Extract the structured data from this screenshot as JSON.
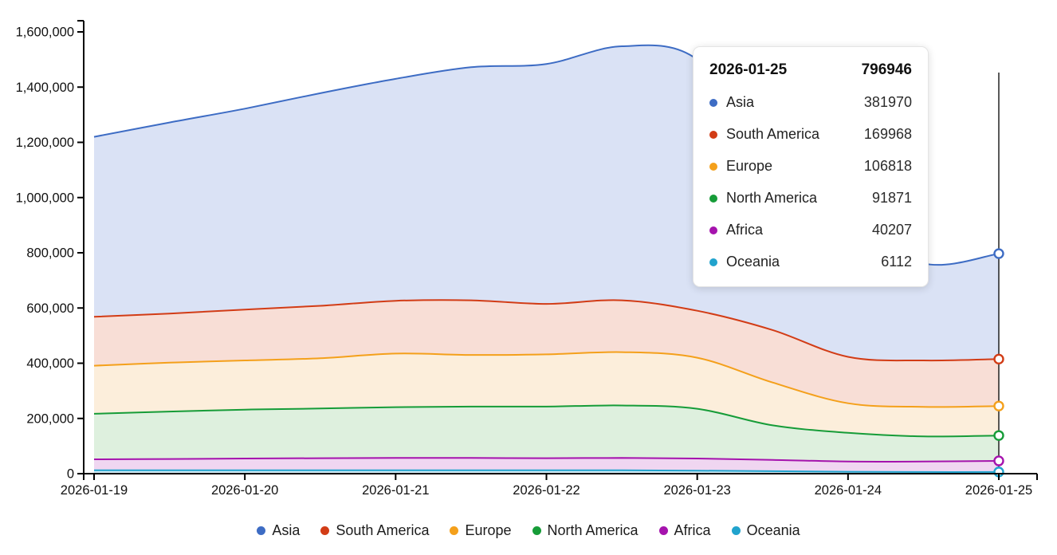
{
  "chart_data": {
    "type": "area",
    "stacked": true,
    "title": "",
    "xlabel": "",
    "ylabel": "",
    "grid": false,
    "legend_position": "bottom",
    "ylim": [
      0,
      1600000
    ],
    "y_ticks": [
      {
        "value": 0,
        "label": "0"
      },
      {
        "value": 200000,
        "label": "200,000"
      },
      {
        "value": 400000,
        "label": "400,000"
      },
      {
        "value": 600000,
        "label": "600,000"
      },
      {
        "value": 800000,
        "label": "800,000"
      },
      {
        "value": 1000000,
        "label": "1,000,000"
      },
      {
        "value": 1200000,
        "label": "1,200,000"
      },
      {
        "value": 1400000,
        "label": "1,400,000"
      },
      {
        "value": 1600000,
        "label": "1,600,000"
      }
    ],
    "x_tick_labels": [
      "2026-01-19",
      "2026-01-20",
      "2026-01-21",
      "2026-01-22",
      "2026-01-23",
      "2026-01-24",
      "2026-01-25"
    ],
    "x": [
      0,
      0.5,
      1,
      1.5,
      2,
      2.5,
      3,
      3.5,
      4,
      4.5,
      5,
      5.5,
      6
    ],
    "hovered_x": 6,
    "series": [
      {
        "name": "Oceania",
        "color": "#21a3cd",
        "fill": "#cfeaf6",
        "values": [
          12000,
          12000,
          12000,
          12000,
          12000,
          12000,
          12000,
          12000,
          11000,
          9000,
          7000,
          6000,
          6112
        ]
      },
      {
        "name": "Africa",
        "color": "#a513ad",
        "fill": "#f0d6f1",
        "values": [
          40000,
          41000,
          43000,
          44000,
          45000,
          45000,
          44000,
          45000,
          44000,
          41000,
          37000,
          38000,
          40207
        ]
      },
      {
        "name": "North America",
        "color": "#169c38",
        "fill": "#def0de",
        "values": [
          165000,
          172000,
          177000,
          180000,
          184000,
          186000,
          187000,
          190000,
          180000,
          125000,
          104000,
          91000,
          91871
        ]
      },
      {
        "name": "Europe",
        "color": "#f4a01b",
        "fill": "#fceedb",
        "values": [
          174000,
          177000,
          178000,
          182000,
          194000,
          187000,
          189000,
          193000,
          185000,
          155000,
          107000,
          107000,
          106818
        ]
      },
      {
        "name": "South America",
        "color": "#d23c16",
        "fill": "#f8ded6",
        "values": [
          177000,
          178000,
          184000,
          190000,
          191000,
          198000,
          183000,
          188000,
          170000,
          190000,
          168000,
          168000,
          169968
        ]
      },
      {
        "name": "Asia",
        "color": "#3d6cc4",
        "fill": "#dae2f5",
        "values": [
          652000,
          692000,
          728000,
          770000,
          804000,
          844000,
          869000,
          920000,
          910000,
          630000,
          512000,
          352000,
          381970
        ]
      }
    ]
  },
  "tooltip": {
    "date": "2026-01-25",
    "total": "796946",
    "rows": [
      {
        "label": "Asia",
        "value": "381970",
        "color": "#3d6cc4"
      },
      {
        "label": "South America",
        "value": "169968",
        "color": "#d23c16"
      },
      {
        "label": "Europe",
        "value": "106818",
        "color": "#f4a01b"
      },
      {
        "label": "North America",
        "value": "91871",
        "color": "#169c38"
      },
      {
        "label": "Africa",
        "value": "40207",
        "color": "#a513ad"
      },
      {
        "label": "Oceania",
        "value": "6112",
        "color": "#21a3cd"
      }
    ]
  },
  "legend": {
    "items": [
      {
        "label": "Asia",
        "color": "#3d6cc4"
      },
      {
        "label": "South America",
        "color": "#d23c16"
      },
      {
        "label": "Europe",
        "color": "#f4a01b"
      },
      {
        "label": "North America",
        "color": "#169c38"
      },
      {
        "label": "Africa",
        "color": "#a513ad"
      },
      {
        "label": "Oceania",
        "color": "#21a3cd"
      }
    ]
  }
}
